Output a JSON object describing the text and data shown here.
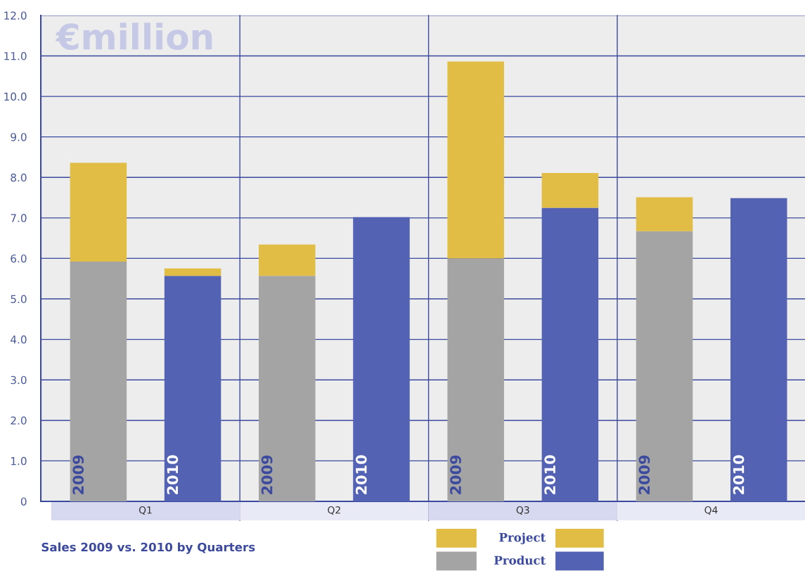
{
  "chart_data": {
    "type": "bar",
    "title": "Sales 2009 vs. 2010 by Quarters",
    "categories": [
      "2009",
      "2010",
      "2009",
      "2010",
      "2009",
      "2010",
      "2009",
      "2010"
    ],
    "stacked": true,
    "series": [
      {
        "name": "Product",
        "colors": [
          "#a4a4a4",
          "#5462b4",
          "#a4a4a4",
          "#5462b4",
          "#a4a4a4",
          "#5462b4",
          "#a4a4a4",
          "#5462b4"
        ],
        "values": [
          5.92,
          5.57,
          5.57,
          7.02,
          6.0,
          7.25,
          6.67,
          7.49
        ]
      },
      {
        "name": "Project",
        "color": "#e2bd45",
        "values": [
          2.44,
          0.18,
          0.77,
          0,
          4.86,
          0.86,
          0.84,
          0
        ]
      }
    ],
    "annotations": [
      "€million",
      "Q1",
      "Q2",
      "Q3",
      "Q4"
    ],
    "ylim": [
      0,
      12
    ],
    "yticks": [
      0,
      {
        "value": 1,
        "label": "1.0"
      },
      {
        "value": 2,
        "label": "2.0"
      },
      {
        "value": 3,
        "label": "3.0"
      },
      {
        "value": 4,
        "label": "4.0"
      },
      {
        "value": 5,
        "label": "5.0"
      },
      {
        "value": 6,
        "label": "6.0"
      },
      {
        "value": 7,
        "label": "7.0"
      },
      {
        "value": 8,
        "label": "8.0"
      },
      {
        "value": 9,
        "label": "9.0"
      },
      {
        "value": 10,
        "label": "10.0"
      },
      {
        "value": 11,
        "label": "11.0"
      },
      {
        "value": 12,
        "label": "12.0"
      }
    ],
    "grid": "y",
    "legend": "bottom right"
  }
}
